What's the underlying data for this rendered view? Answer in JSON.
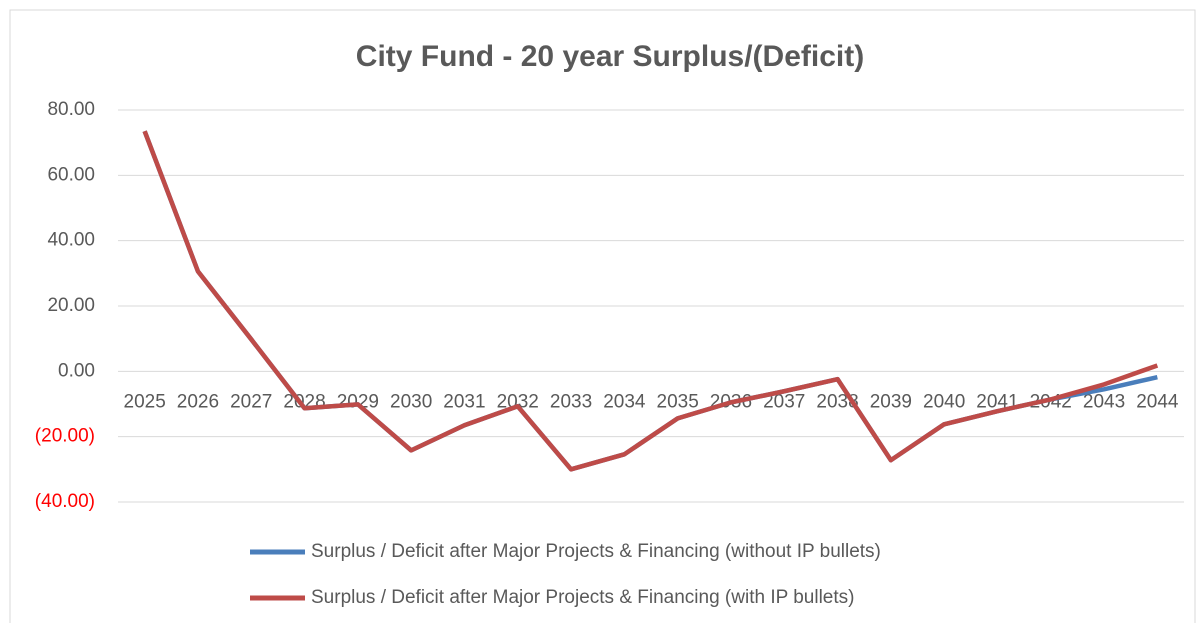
{
  "chart_data": {
    "type": "line",
    "title": "City Fund - 20 year Surplus/(Deficit)",
    "categories": [
      "2025",
      "2026",
      "2027",
      "2028",
      "2029",
      "2030",
      "2031",
      "2032",
      "2033",
      "2034",
      "2035",
      "2036",
      "2037",
      "2038",
      "2039",
      "2040",
      "2041",
      "2042",
      "2043",
      "2044"
    ],
    "series": [
      {
        "name": "Surplus / Deficit after Major Projects & Financing (without IP bullets)",
        "color": "#4a7ebb",
        "values": [
          73.5,
          30.6,
          9.8,
          -11.3,
          -10.1,
          -24.2,
          -16.5,
          -10.7,
          -30.0,
          -25.4,
          -14.4,
          -9.5,
          -6.1,
          -2.4,
          -27.2,
          -16.2,
          -12.2,
          -8.6,
          -5.5,
          -1.8
        ]
      },
      {
        "name": "Surplus / Deficit after Major Projects & Financing (with IP bullets)",
        "color": "#be4b48",
        "values": [
          73.5,
          30.6,
          9.8,
          -11.3,
          -10.1,
          -24.2,
          -16.5,
          -10.7,
          -30.0,
          -25.4,
          -14.4,
          -9.5,
          -6.1,
          -2.4,
          -27.2,
          -16.2,
          -12.2,
          -8.6,
          -4.0,
          1.8
        ]
      }
    ],
    "ylim": [
      -40,
      80
    ],
    "yticks": [
      {
        "value": -40,
        "label": "(40.00)"
      },
      {
        "value": -20,
        "label": "(20.00)"
      },
      {
        "value": 0,
        "label": "0.00"
      },
      {
        "value": 20,
        "label": "20.00"
      },
      {
        "value": 40,
        "label": "40.00"
      },
      {
        "value": 60,
        "label": "60.00"
      },
      {
        "value": 80,
        "label": "80.00"
      }
    ],
    "ytick_negative_color": "#ff0000",
    "grid": true,
    "legend": "bottom"
  }
}
